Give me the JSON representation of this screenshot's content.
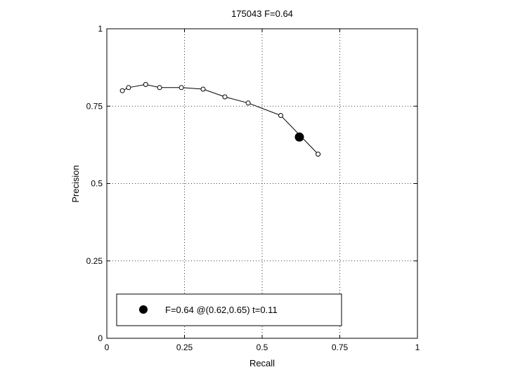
{
  "chart_data": {
    "type": "line",
    "title": "175043 F=0.64",
    "xlabel": "Recall",
    "ylabel": "Precision",
    "xlim": [
      0,
      1
    ],
    "ylim": [
      0,
      1
    ],
    "xticks": [
      0,
      0.25,
      0.5,
      0.75,
      1
    ],
    "yticks": [
      0,
      0.25,
      0.5,
      0.75,
      1
    ],
    "xtick_labels": [
      "0",
      "0.25",
      "0.5",
      "0.75",
      "1"
    ],
    "ytick_labels": [
      "0",
      "0.25",
      "0.5",
      "0.75",
      "1"
    ],
    "grid": true,
    "legend_position": "bottom-left",
    "series": [
      {
        "marker": "open-circle",
        "color": "#000000",
        "x": [
          0.05,
          0.07,
          0.125,
          0.17,
          0.24,
          0.31,
          0.38,
          0.455,
          0.56,
          0.68
        ],
        "y": [
          0.8,
          0.81,
          0.82,
          0.81,
          0.81,
          0.805,
          0.78,
          0.76,
          0.72,
          0.595
        ]
      }
    ],
    "highlight_point": {
      "x": 0.62,
      "y": 0.65,
      "marker": "filled-circle",
      "color": "#000000"
    },
    "legend_entry": "F=0.64 @(0.62,0.65) t=0.11"
  }
}
